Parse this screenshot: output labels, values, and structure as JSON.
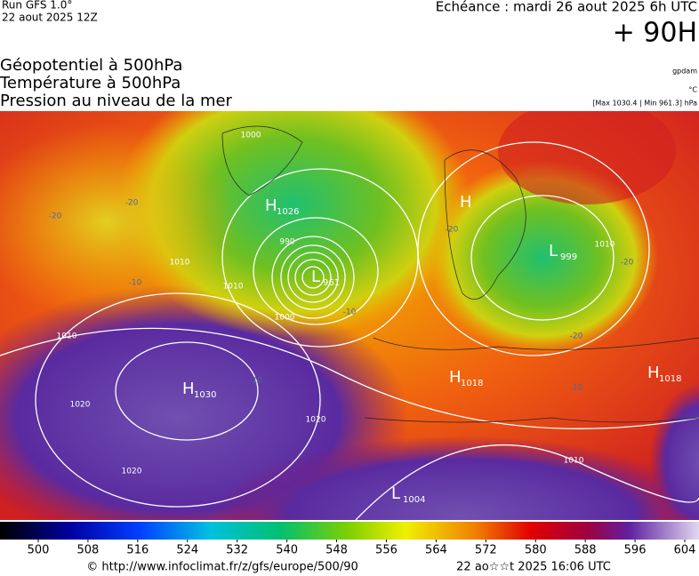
{
  "header": {
    "run": "Run GFS 1.0°",
    "date": "22 aout 2025 12Z",
    "echeance": "Echéance : mardi 26 aout 2025 6h UTC",
    "lead": "+ 90H"
  },
  "legend": [
    "Géopotentiel à 500hPa",
    "Température à 500hPa",
    "Pression au niveau de la mer"
  ],
  "units": {
    "geo": "gpdam",
    "temp": "°C",
    "pressure": "[Max 1030.4 | Min 961.3] hPa"
  },
  "centers": [
    {
      "letter": "H",
      "value": "1026"
    },
    {
      "letter": "L",
      "value": "961"
    },
    {
      "letter": "H"
    },
    {
      "letter": "L",
      "value": "999"
    },
    {
      "letter": "H",
      "value": "1030"
    },
    {
      "letter": "H",
      "value": "1018"
    },
    {
      "letter": "H",
      "value": "1018"
    },
    {
      "letter": "L",
      "value": "1004"
    }
  ],
  "isobar_labels": [
    "1000",
    "1010",
    "1010",
    "990",
    "1000",
    "1020",
    "1020",
    "1020",
    "1010",
    "1010",
    "1010"
  ],
  "temperature_labels": [
    "-20",
    "-20",
    "-10",
    "-10",
    "-20",
    "-20",
    "-20",
    "-10",
    "-10"
  ],
  "colorbar": {
    "ticks": [
      500,
      508,
      516,
      524,
      532,
      540,
      548,
      556,
      564,
      572,
      580,
      588,
      596,
      604
    ]
  },
  "footer": {
    "source": "© http://www.infoclimat.fr/z/gfs/europe/500/90",
    "generated": "22 ao☆☆t 2025 16:06 UTC"
  }
}
